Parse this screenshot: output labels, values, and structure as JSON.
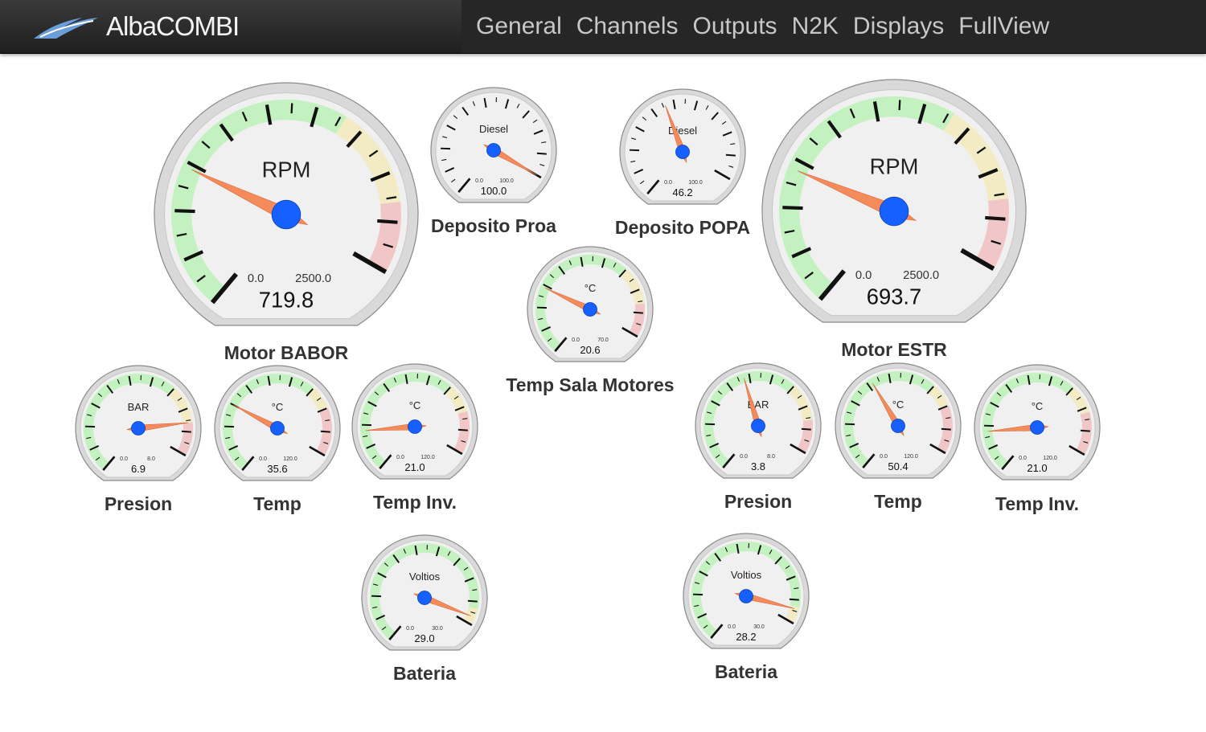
{
  "header": {
    "brand": "AlbaCOMBI",
    "logo_icon": "seagull-logo-icon",
    "nav": [
      "General",
      "Channels",
      "Outputs",
      "N2K",
      "Displays",
      "FullView"
    ]
  },
  "colors": {
    "green": "#c3f1c0",
    "yellow": "#f3ebc4",
    "red": "#f1c6c6",
    "needle": "#f58a5a",
    "hub": "#1560ff"
  },
  "gauges": [
    {
      "id": "motor-babor-rpm",
      "label": "Motor BABOR",
      "title": "RPM",
      "min": "0.0",
      "max": "2500.0",
      "value": "719.8",
      "needle_fraction": 0.29,
      "zones": {
        "green": 0.66,
        "yellow": 0.86
      }
    },
    {
      "id": "deposito-proa",
      "label": "Deposito Proa",
      "title": "Diesel",
      "min": "0.0",
      "max": "100.0",
      "value": "100.0",
      "needle_fraction": 1.0,
      "zones": null
    },
    {
      "id": "deposito-popa",
      "label": "Deposito POPA",
      "title": "Diesel",
      "min": "0.0",
      "max": "100.0",
      "value": "46.2",
      "needle_fraction": 0.46,
      "zones": null
    },
    {
      "id": "motor-estr-rpm",
      "label": "Motor ESTR",
      "title": "RPM",
      "min": "0.0",
      "max": "2500.0",
      "value": "693.7",
      "needle_fraction": 0.28,
      "zones": {
        "green": 0.66,
        "yellow": 0.86
      }
    },
    {
      "id": "temp-sala-motores",
      "label": "Temp Sala Motores",
      "title": "°C",
      "min": "0.0",
      "max": "70.0",
      "value": "20.6",
      "needle_fraction": 0.29,
      "zones": {
        "green": 0.7,
        "yellow": 0.86
      }
    },
    {
      "id": "babor-presion",
      "label": "Presion",
      "title": "BAR",
      "min": "0.0",
      "max": "8.0",
      "value": "6.9",
      "needle_fraction": 0.86,
      "zones": {
        "green": 0.7,
        "yellow": 0.86
      }
    },
    {
      "id": "babor-temp",
      "label": "Temp",
      "title": "°C",
      "min": "0.0",
      "max": "120.0",
      "value": "35.6",
      "needle_fraction": 0.3,
      "zones": {
        "green": 0.7,
        "yellow": 0.8
      }
    },
    {
      "id": "babor-temp-inv",
      "label": "Temp Inv.",
      "title": "°C",
      "min": "0.0",
      "max": "120.0",
      "value": "21.0",
      "needle_fraction": 0.175,
      "zones": {
        "green": 0.7,
        "yellow": 0.82
      }
    },
    {
      "id": "estr-presion",
      "label": "Presion",
      "title": "BAR",
      "min": "0.0",
      "max": "8.0",
      "value": "3.8",
      "needle_fraction": 0.475,
      "zones": {
        "green": 0.7,
        "yellow": 0.86
      }
    },
    {
      "id": "estr-temp",
      "label": "Temp",
      "title": "°C",
      "min": "0.0",
      "max": "120.0",
      "value": "50.4",
      "needle_fraction": 0.42,
      "zones": {
        "green": 0.7,
        "yellow": 0.8
      }
    },
    {
      "id": "estr-temp-inv",
      "label": "Temp Inv.",
      "title": "°C",
      "min": "0.0",
      "max": "120.0",
      "value": "21.0",
      "needle_fraction": 0.175,
      "zones": {
        "green": 0.7,
        "yellow": 0.82
      }
    },
    {
      "id": "babor-bateria",
      "label": "Bateria",
      "title": "Voltios",
      "min": "0.0",
      "max": "30.0",
      "value": "29.0",
      "needle_fraction": 0.967,
      "zones": {
        "green": 0.93,
        "yellow": 1.0
      }
    },
    {
      "id": "estr-bateria",
      "label": "Bateria",
      "title": "Voltios",
      "min": "0.0",
      "max": "30.0",
      "value": "28.2",
      "needle_fraction": 0.94,
      "zones": {
        "green": 0.93,
        "yellow": 1.0
      }
    }
  ]
}
